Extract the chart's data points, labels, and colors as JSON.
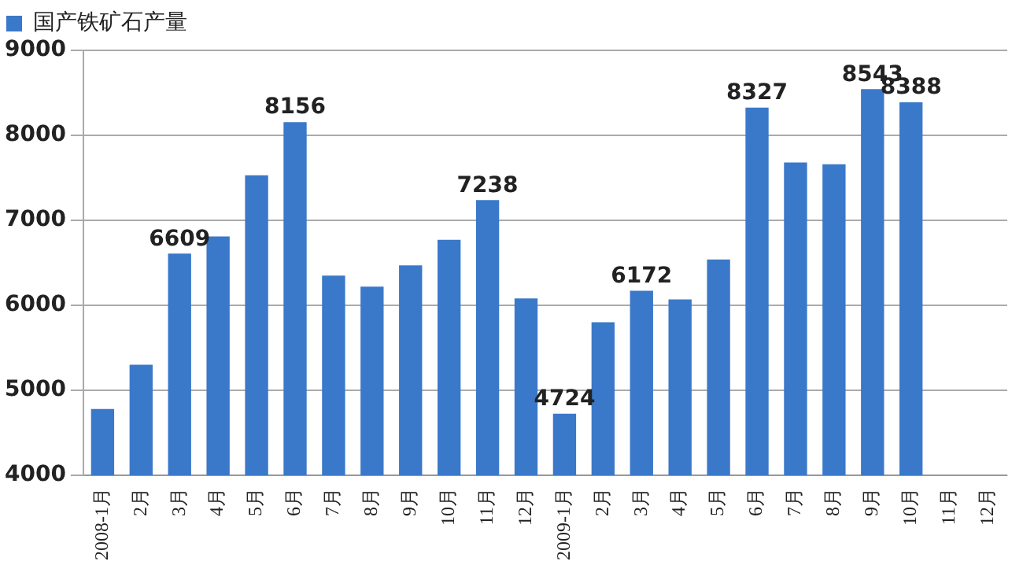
{
  "chart_data": {
    "type": "bar",
    "categories": [
      "2008-1月",
      "2月",
      "3月",
      "4月",
      "5月",
      "6月",
      "7月",
      "8月",
      "9月",
      "10月",
      "11月",
      "12月",
      "2009-1月",
      "2月",
      "3月",
      "4月",
      "5月",
      "6月",
      "7月",
      "8月",
      "9月",
      "10月",
      "11月",
      "12月"
    ],
    "series": [
      {
        "name": "国产铁矿石产量",
        "color": "#3a78c9",
        "values": [
          4780,
          5300,
          6609,
          6810,
          7530,
          8156,
          6350,
          6220,
          6470,
          6770,
          7238,
          6080,
          4724,
          5800,
          6172,
          6070,
          6540,
          8327,
          7680,
          7660,
          8543,
          8388,
          null,
          null
        ],
        "value_labels": [
          null,
          null,
          "6609",
          null,
          null,
          "8156",
          null,
          null,
          null,
          null,
          "7238",
          null,
          "4724",
          null,
          "6172",
          null,
          null,
          "8327",
          null,
          null,
          "8543",
          "8388",
          null,
          null
        ]
      }
    ],
    "ylim": [
      4000,
      9000
    ],
    "yticks": [
      4000,
      5000,
      6000,
      7000,
      8000,
      9000
    ],
    "grid": "y",
    "legend": "top left"
  }
}
